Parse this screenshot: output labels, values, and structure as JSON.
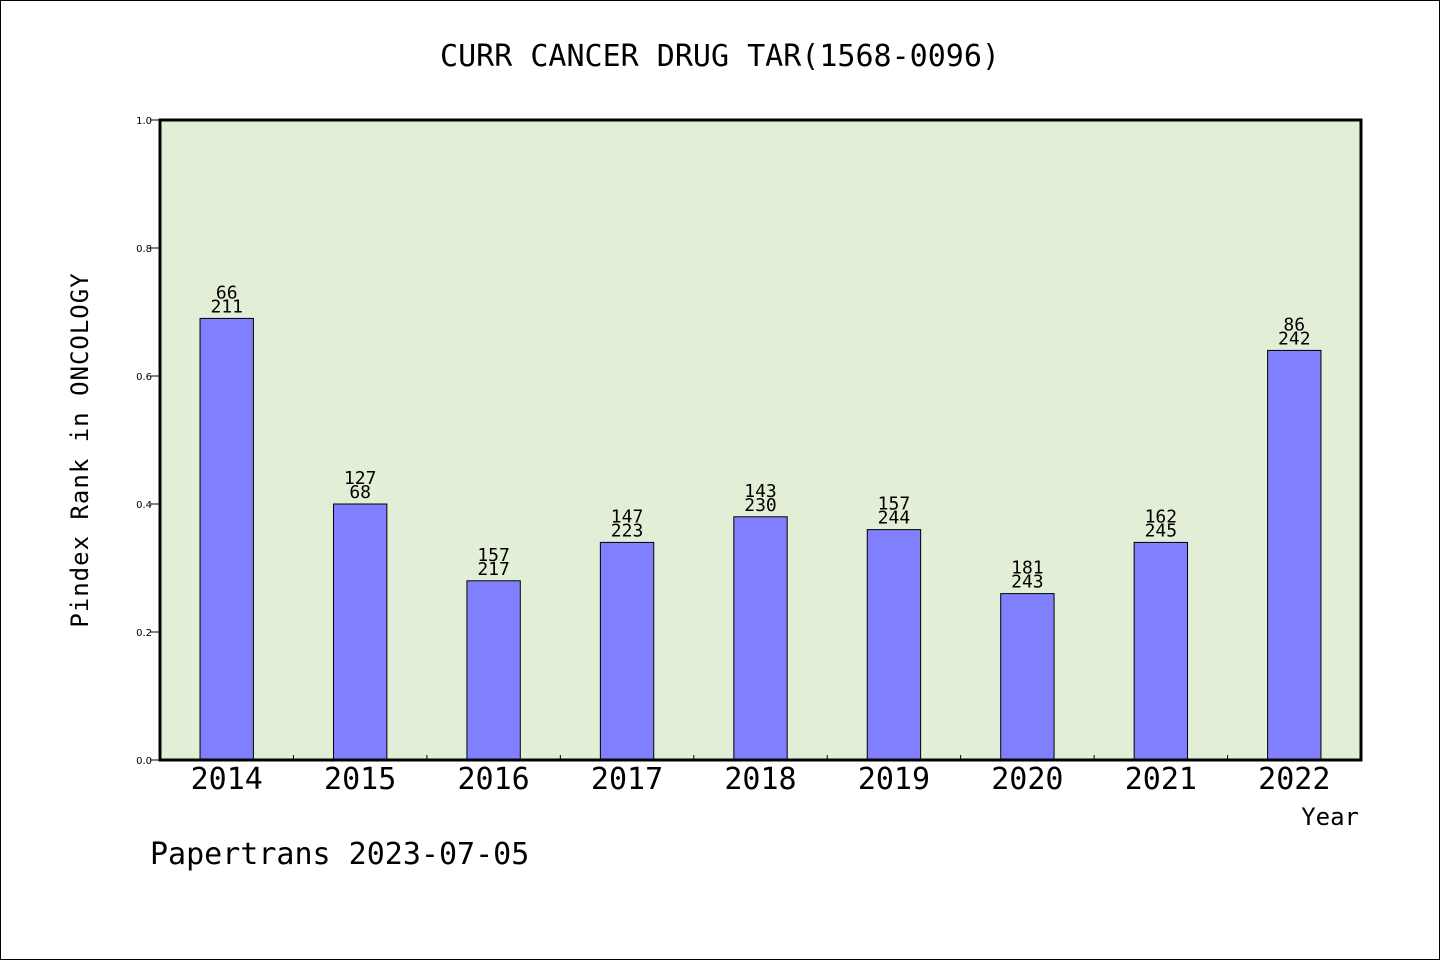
{
  "chart_data": {
    "type": "bar",
    "title": "CURR CANCER DRUG TAR(1568-0096)",
    "xlabel": "Year",
    "ylabel": "Pindex Rank in ONCOLOGY",
    "ylim": [
      0,
      1.0
    ],
    "yticks": [
      "0.0",
      "0.2",
      "0.4",
      "0.6",
      "0.8",
      "1.0"
    ],
    "categories": [
      "2014",
      "2015",
      "2016",
      "2017",
      "2018",
      "2019",
      "2020",
      "2021",
      "2022"
    ],
    "values": [
      0.69,
      0.4,
      0.28,
      0.34,
      0.38,
      0.36,
      0.26,
      0.34,
      0.64
    ],
    "labels_top": [
      "66",
      "127",
      "157",
      "147",
      "143",
      "157",
      "181",
      "162",
      "86"
    ],
    "labels_bottom": [
      "211",
      "68",
      "217",
      "223",
      "230",
      "244",
      "243",
      "245",
      "242"
    ],
    "grid": false,
    "colors": {
      "plot_background": "#e2efd6",
      "bar_fill": "#8080ff",
      "bar_stroke": "#000000"
    }
  },
  "footer": "Papertrans 2023-07-05"
}
